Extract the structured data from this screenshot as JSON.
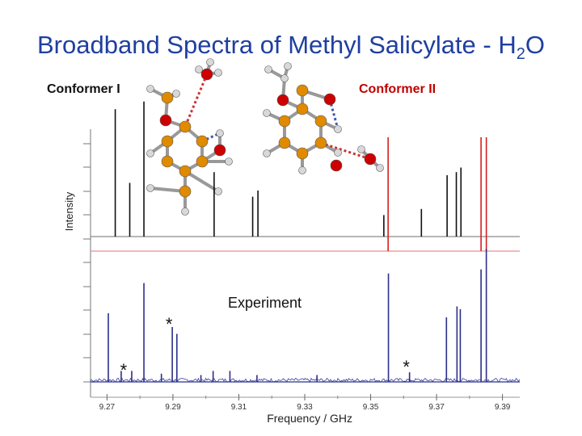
{
  "title_main": "Broadband Spectra of Methyl Salicylate - H",
  "title_sub": "2",
  "title_end": "O",
  "conformer_1_label": "Conformer I",
  "conformer_2_label": "Conformer II",
  "colors": {
    "title": "#1f3fa0",
    "conformer_1": "#111111",
    "conformer_2": "#d62020",
    "experiment": "#2b2f8c",
    "oxygen_atom": "#cc0000",
    "carbon_atom": "#e08a00",
    "hydrogen_atom": "#d8d8d8"
  },
  "chart_data": {
    "type": "line",
    "title": "Broadband Spectra of Methyl Salicylate - H2O",
    "xlabel": "Frequency / GHz",
    "ylabel": "Intensity",
    "xlim": [
      9.265,
      9.395
    ],
    "x_ticks": [
      9.27,
      9.29,
      9.31,
      9.33,
      9.35,
      9.37,
      9.39
    ],
    "x_tick_labels": [
      "9.27",
      "9.29",
      "9.31",
      "9.33",
      "9.35",
      "9.37",
      "9.39"
    ],
    "series": [
      {
        "name": "Conformer I",
        "color": "#111111",
        "lines": [
          [
            9.2725,
            0.83
          ],
          [
            9.2769,
            0.35
          ],
          [
            9.2812,
            0.88
          ],
          [
            9.3025,
            0.42
          ],
          [
            9.3142,
            0.26
          ],
          [
            9.3158,
            0.3
          ],
          [
            9.354,
            0.14
          ],
          [
            9.3654,
            0.18
          ],
          [
            9.3732,
            0.4
          ],
          [
            9.376,
            0.42
          ],
          [
            9.3774,
            0.45
          ]
        ]
      },
      {
        "name": "Conformer II",
        "color": "#d62020",
        "lines": [
          [
            9.3553,
            1.0
          ],
          [
            9.3835,
            1.0
          ],
          [
            9.3851,
            1.0
          ]
        ]
      },
      {
        "name": "Experiment",
        "color": "#2b2f8c",
        "lines": [
          [
            9.2704,
            0.5
          ],
          [
            9.2743,
            0.08
          ],
          [
            9.2775,
            0.08
          ],
          [
            9.2812,
            0.72
          ],
          [
            9.2865,
            0.06
          ],
          [
            9.2898,
            0.4
          ],
          [
            9.2912,
            0.35
          ],
          [
            9.2985,
            0.05
          ],
          [
            9.3022,
            0.08
          ],
          [
            9.3073,
            0.08
          ],
          [
            9.3155,
            0.05
          ],
          [
            9.3337,
            0.05
          ],
          [
            9.3554,
            0.79
          ],
          [
            9.3618,
            0.07
          ],
          [
            9.373,
            0.47
          ],
          [
            9.3762,
            0.55
          ],
          [
            9.3772,
            0.53
          ],
          [
            9.3835,
            0.82
          ],
          [
            9.3851,
            0.97
          ]
        ]
      }
    ],
    "annotations": [
      {
        "text": "Experiment",
        "x": 9.3195
      },
      {
        "text": "*",
        "x": 9.276
      },
      {
        "text": "*",
        "x": 9.2898
      },
      {
        "text": "*",
        "x": 9.3618
      }
    ]
  }
}
